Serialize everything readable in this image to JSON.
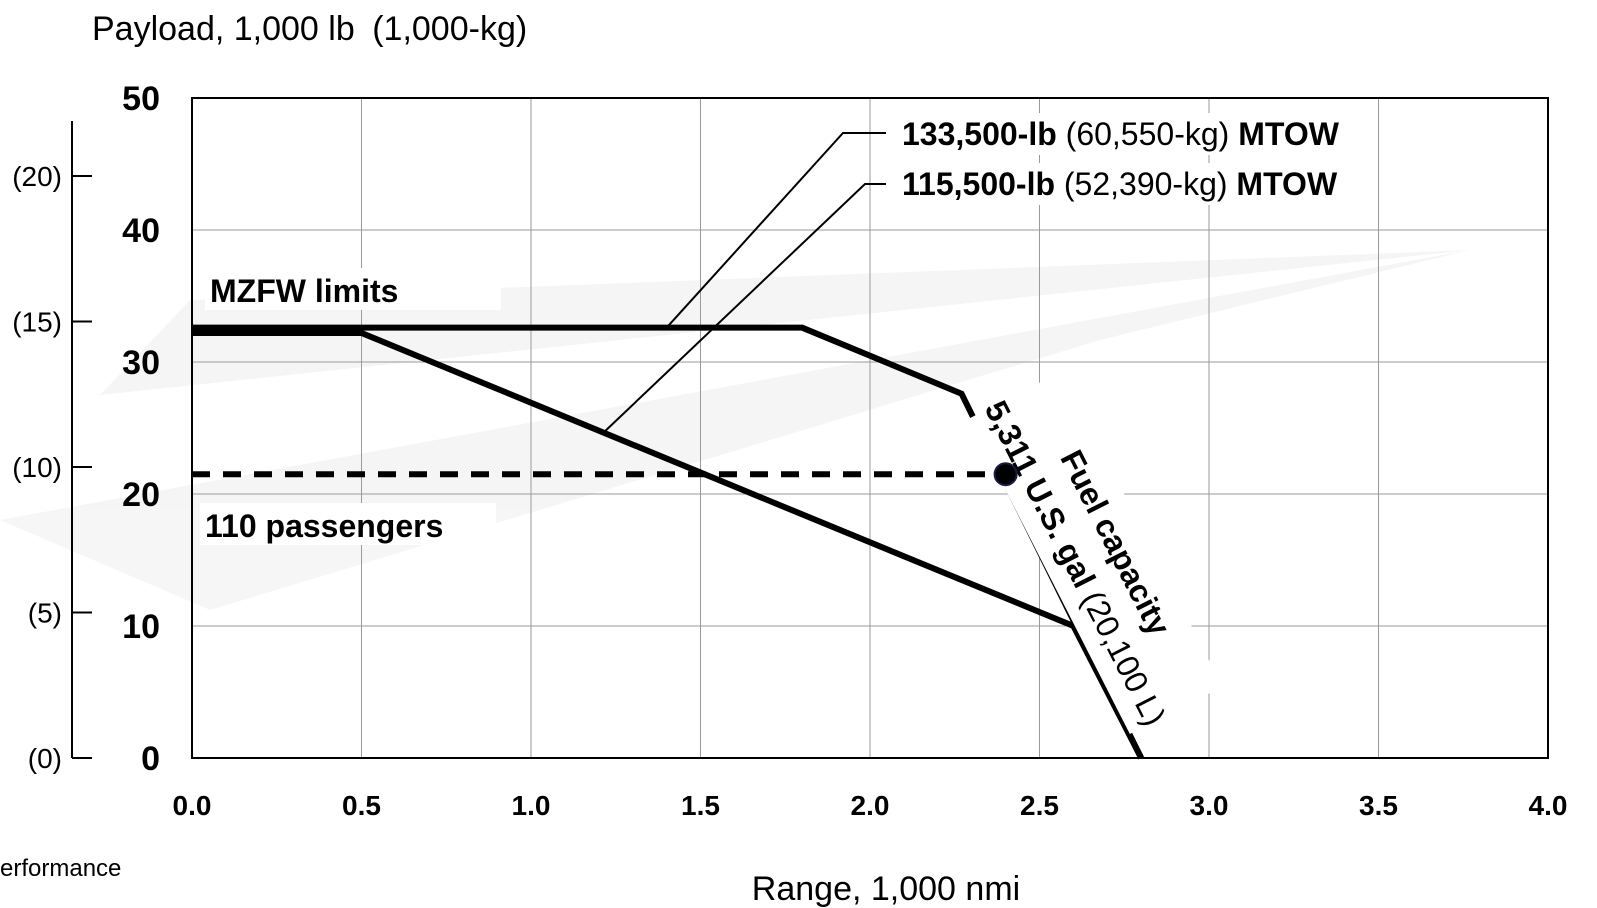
{
  "chart_data": {
    "type": "line",
    "title": "",
    "ylabel_main": "Payload, 1,000 lb",
    "ylabel_metric": "(1,000-kg)",
    "xlabel": "Range, 1,000 nmi",
    "xlim": [
      0,
      4.0
    ],
    "ylim": [
      0,
      50
    ],
    "x_ticks": [
      "0.0",
      "0.5",
      "1.0",
      "1.5",
      "2.0",
      "2.5",
      "3.0",
      "3.5",
      "4.0"
    ],
    "y_ticks": [
      "0",
      "10",
      "20",
      "30",
      "40",
      "50"
    ],
    "y_metric_ticks": [
      {
        "label": "(0)",
        "value_lb": 0
      },
      {
        "label": "(5)",
        "value_lb": 11.02
      },
      {
        "label": "(10)",
        "value_lb": 22.05
      },
      {
        "label": "(15)",
        "value_lb": 33.07
      },
      {
        "label": "(20)",
        "value_lb": 44.09
      }
    ],
    "grid": true,
    "series": [
      {
        "style": "solid",
        "x": [
          0.0,
          1.8,
          2.27,
          2.8
        ],
        "y": [
          32.6,
          32.6,
          27.6,
          0
        ]
      },
      {
        "style": "solid",
        "x": [
          0.0,
          0.5,
          2.6,
          2.8
        ],
        "y": [
          32.2,
          32.2,
          10.0,
          0
        ]
      },
      {
        "style": "dashed",
        "x": [
          0.0,
          2.4
        ],
        "y": [
          21.5,
          21.5
        ]
      }
    ],
    "marker_point": {
      "x": 2.4,
      "y": 21.5
    },
    "annotations": {
      "mtow_high": {
        "bold_a": "133,500-lb",
        "regular": " (60,550-kg) ",
        "bold_b": "MTOW",
        "target_x": 1.4,
        "target_y": 32.6
      },
      "mtow_low": {
        "bold_a": "115,500-lb",
        "regular": " (52,390-kg) ",
        "bold_b": "MTOW",
        "target_x": 1.22,
        "target_y": 24.8
      },
      "mzfw": "MZFW limits",
      "passengers": "110 passengers",
      "fuel_line1": "Fuel capacity",
      "fuel_line2_bold": "5,311 U.S. gal",
      "fuel_line2_regular": " (20,100 L)"
    },
    "footer": "erformance"
  }
}
